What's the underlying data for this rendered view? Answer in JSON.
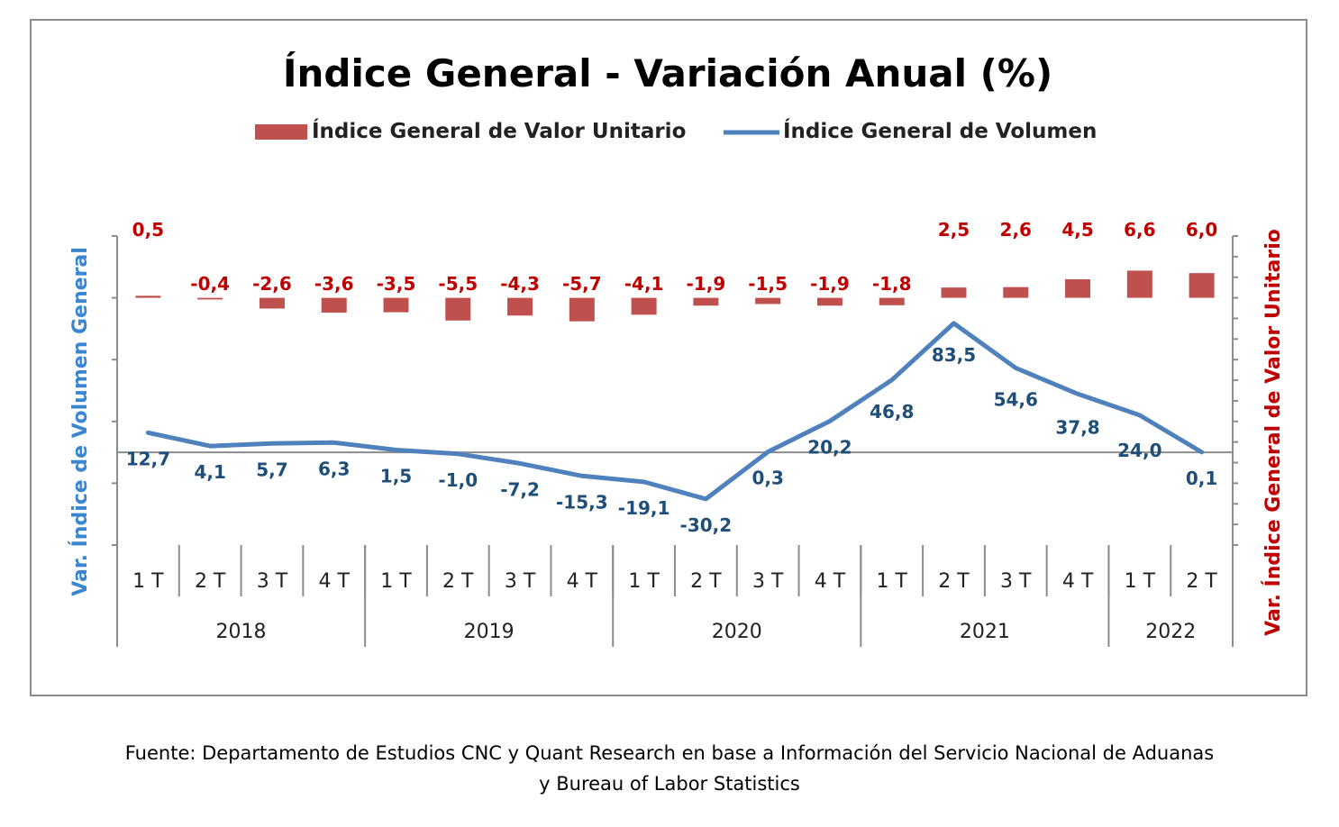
{
  "chart_data": {
    "type": "bar+line",
    "title": "Índice General - Variación Anual (%)",
    "legend_position": "top",
    "years": [
      "2018",
      "2019",
      "2020",
      "2021",
      "2022"
    ],
    "year_quarter_counts": [
      4,
      4,
      4,
      4,
      2
    ],
    "categories": [
      "1 T",
      "2 T",
      "3 T",
      "4 T",
      "1 T",
      "2 T",
      "3 T",
      "4 T",
      "1 T",
      "2 T",
      "3 T",
      "4 T",
      "1 T",
      "2 T",
      "3 T",
      "4 T",
      "1 T",
      "2 T"
    ],
    "series": [
      {
        "name": "Índice General de Valor Unitario",
        "type": "bar",
        "axis": "right",
        "color": "#c0504d",
        "values": [
          0.5,
          -0.4,
          -2.6,
          -3.6,
          -3.5,
          -5.5,
          -4.3,
          -5.7,
          -4.1,
          -1.9,
          -1.5,
          -1.9,
          -1.8,
          2.5,
          2.6,
          4.5,
          6.6,
          6.0
        ],
        "labels": [
          "0,5",
          "-0,4",
          "-2,6",
          "-3,6",
          "-3,5",
          "-5,5",
          "-4,3",
          "-5,7",
          "-4,1",
          "-1,9",
          "-1,5",
          "-1,9",
          "-1,8",
          "2,5",
          "2,6",
          "4,5",
          "6,6",
          "6,0"
        ]
      },
      {
        "name": "Índice General de Volumen",
        "type": "line",
        "axis": "left",
        "color": "#4f81bd",
        "values": [
          12.7,
          4.1,
          5.7,
          6.3,
          1.5,
          -1.0,
          -7.2,
          -15.3,
          -19.1,
          -30.2,
          0.3,
          20.2,
          46.8,
          83.5,
          54.6,
          37.8,
          24.0,
          0.1
        ],
        "labels": [
          "12,7",
          "4,1",
          "5,7",
          "6,3",
          "1,5",
          "-1,0",
          "-7,2",
          "-15,3",
          "-19,1",
          "-30,2",
          "0,3",
          "20,2",
          "46,8",
          "83,5",
          "54,6",
          "37,8",
          "24,0",
          "0,1"
        ]
      }
    ],
    "ylabel_left": "Var. Índice de Volumen General",
    "ylabel_right": "Var. Índice General de Valor Unitario",
    "ylim_left": [
      -60,
      140
    ],
    "ylim_right": [
      -60,
      15
    ],
    "grid": false
  },
  "footer": {
    "line1": "Fuente: Departamento de Estudios CNC y Quant Research en base a Información del Servicio Nacional de Aduanas",
    "line2": "y Bureau of Labor Statistics"
  }
}
